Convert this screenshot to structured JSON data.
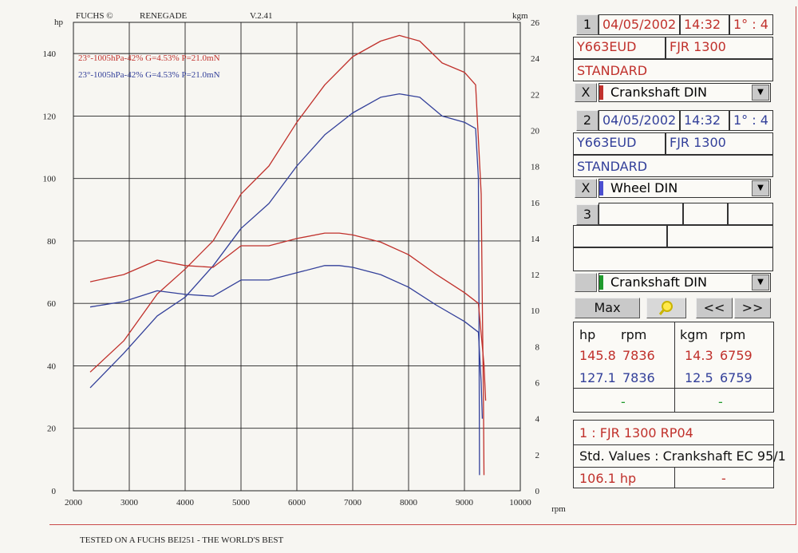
{
  "header": {
    "brand": "FUCHS ©",
    "model": "RENEGADE",
    "version": "V.2.41",
    "left_unit": "hp",
    "right_unit": "kgm"
  },
  "footer": "TESTED ON A FUCHS BEI251 - THE WORLD'S BEST",
  "legend": [
    {
      "text": "23°-1005hPa-42% G=4.53% P=21.0mN",
      "color": "#c0302b"
    },
    {
      "text": "23°-1005hPa-42% G=4.53% P=21.0mN",
      "color": "#33409a"
    }
  ],
  "chart_data": {
    "type": "line",
    "xlabel": "rpm",
    "ylabel": "hp",
    "y2label": "kgm",
    "xlim": [
      2000,
      10000
    ],
    "ylim": [
      0,
      150
    ],
    "y2lim": [
      0,
      26
    ],
    "x_ticks": [
      2000,
      3000,
      4000,
      5000,
      6000,
      7000,
      8000,
      9000,
      10000
    ],
    "y_ticks": [
      0,
      20,
      40,
      60,
      80,
      100,
      120,
      140
    ],
    "y2_ticks": [
      0,
      2,
      4,
      6,
      8,
      10,
      12,
      14,
      16,
      18,
      20,
      22,
      24,
      26
    ],
    "grid": true,
    "series": [
      {
        "color": "#c0302b",
        "axis": "left",
        "x": [
          2300,
          2900,
          3500,
          4000,
          4500,
          5000,
          5500,
          6000,
          6500,
          7000,
          7500,
          7836,
          8200,
          8600,
          9000,
          9200,
          9300,
          9320,
          9340,
          9350
        ],
        "y": [
          38,
          48,
          63,
          71,
          80,
          95,
          104,
          118,
          130,
          139,
          144,
          145.8,
          144,
          137,
          134,
          130,
          95,
          60,
          30,
          5
        ]
      },
      {
        "color": "#33409a",
        "axis": "left",
        "x": [
          2300,
          2900,
          3500,
          4000,
          4500,
          5000,
          5500,
          6000,
          6500,
          7000,
          7500,
          7836,
          8200,
          8600,
          9000,
          9200,
          9250,
          9260,
          9270
        ],
        "y": [
          33,
          44,
          56,
          62,
          72,
          84,
          92,
          104,
          114,
          121,
          126,
          127.1,
          126,
          120,
          118,
          116,
          100,
          60,
          5
        ]
      },
      {
        "color": "#c0302b",
        "axis": "right",
        "x": [
          2300,
          2900,
          3500,
          4000,
          4500,
          5000,
          5500,
          6000,
          6500,
          6759,
          7000,
          7500,
          8000,
          8500,
          9000,
          9250,
          9350,
          9380
        ],
        "y": [
          11.6,
          12.0,
          12.8,
          12.5,
          12.4,
          13.6,
          13.6,
          14.0,
          14.3,
          14.3,
          14.2,
          13.8,
          13.1,
          12.0,
          11.0,
          10.4,
          7.0,
          5.0
        ]
      },
      {
        "color": "#33409a",
        "axis": "right",
        "x": [
          2300,
          2900,
          3500,
          4000,
          4500,
          5000,
          5500,
          6000,
          6500,
          6759,
          7000,
          7500,
          8000,
          8500,
          9000,
          9250,
          9300,
          9320
        ],
        "y": [
          10.2,
          10.5,
          11.1,
          10.9,
          10.8,
          11.7,
          11.7,
          12.1,
          12.5,
          12.5,
          12.4,
          12.0,
          11.3,
          10.3,
          9.4,
          8.8,
          6.0,
          4.0
        ]
      }
    ]
  },
  "panel": {
    "run1": {
      "num": "1",
      "date": "04/05/2002",
      "time": "14:32",
      "gear": "1° : 4",
      "reg": "Y663EUD",
      "model": "FJR 1300",
      "mode": "STANDARD",
      "close": "X",
      "power": "Crankshaft DIN",
      "color": "#c0302b"
    },
    "run2": {
      "num": "2",
      "date": "04/05/2002",
      "time": "14:32",
      "gear": "1° : 4",
      "reg": "Y663EUD",
      "model": "FJR 1300",
      "mode": "STANDARD",
      "close": "X",
      "power": "Wheel DIN",
      "color": "#4b4fd0"
    },
    "run3": {
      "num": "3",
      "power": "Crankshaft DIN",
      "color": "#1f9a2c"
    },
    "buttons": {
      "max": "Max",
      "prev": "<<",
      "next": ">>"
    },
    "table": {
      "h1": "hp",
      "h2": "rpm",
      "h3": "kgm",
      "h4": "rpm",
      "r1": {
        "hp": "145.8",
        "hp_rpm": "7836",
        "kgm": "14.3",
        "kgm_rpm": "6759"
      },
      "r2": {
        "hp": "127.1",
        "hp_rpm": "7836",
        "kgm": "12.5",
        "kgm_rpm": "6759"
      },
      "r3": {
        "a": "-",
        "b": "-"
      }
    },
    "info": {
      "line1": "1 : FJR 1300  RP04",
      "line2": "Std. Values : Crankshaft EC 95/1",
      "val": "106.1   hp",
      "dash": "-"
    }
  }
}
